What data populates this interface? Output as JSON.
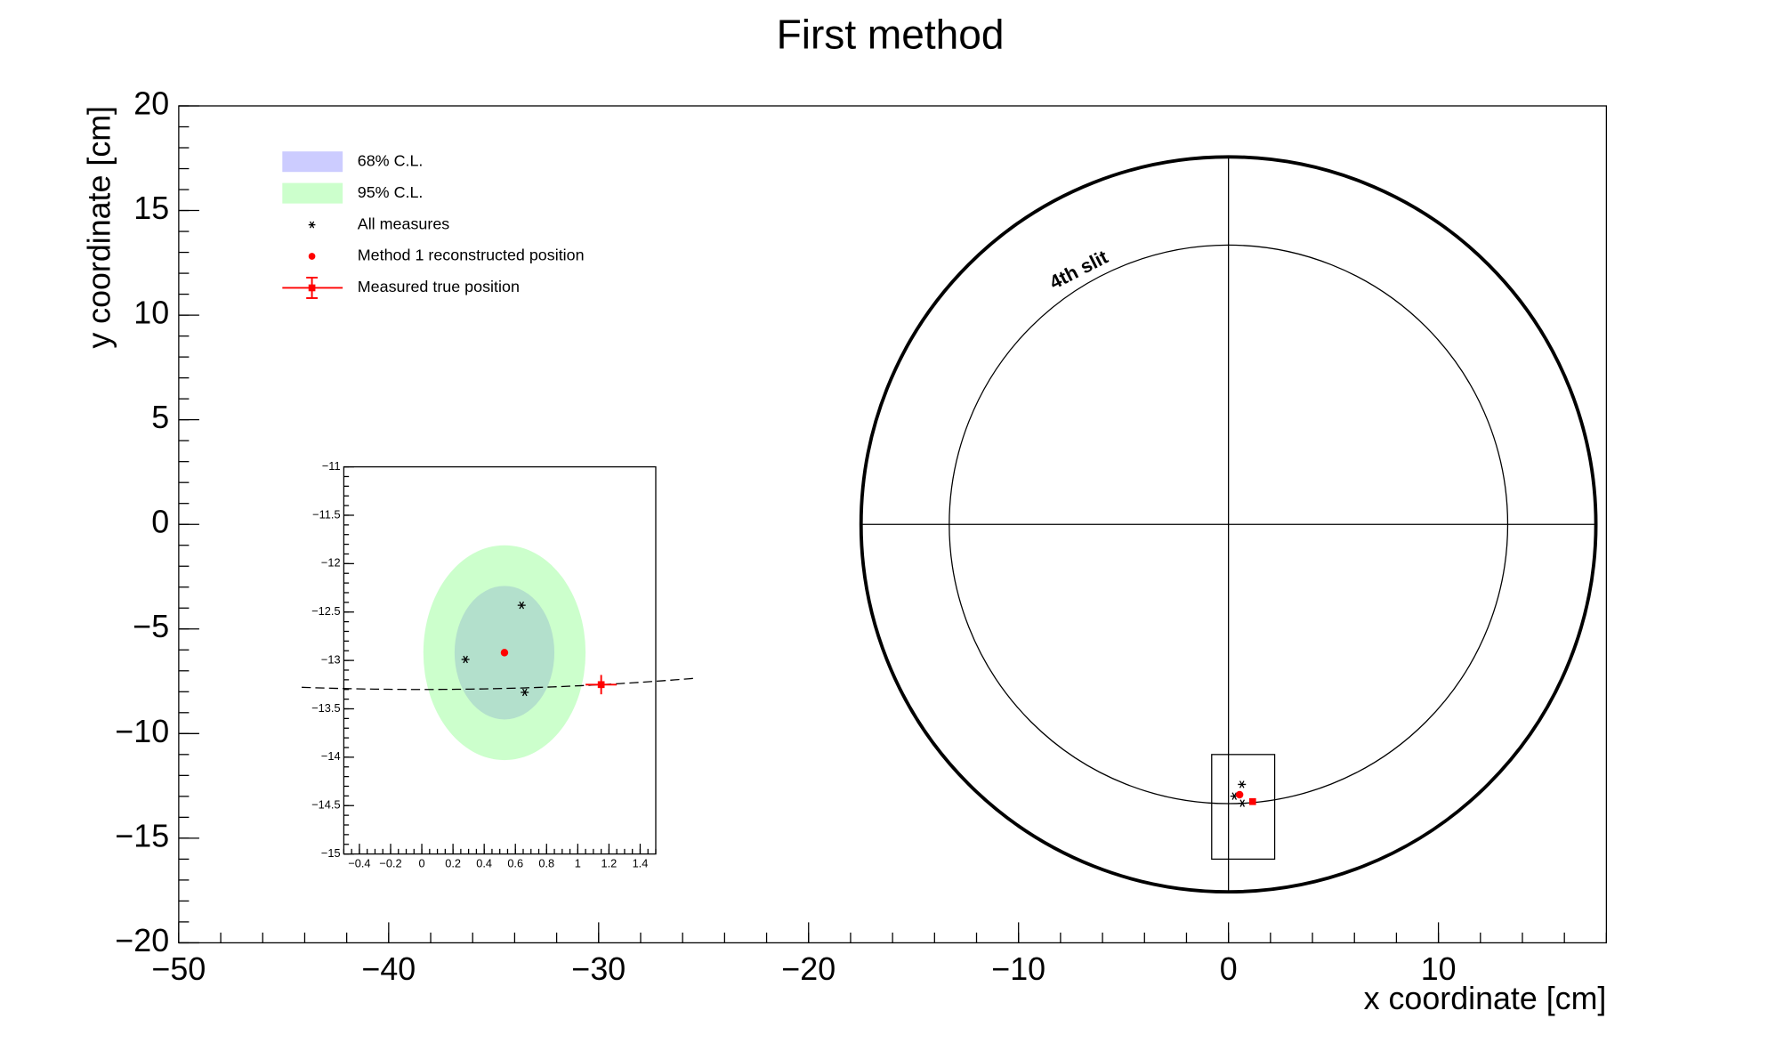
{
  "chart_data": {
    "type": "scatter",
    "title": "First method",
    "x_label": "x coordinate [cm]",
    "y_label": "y coordinate [cm]",
    "legend": "top-left",
    "xlim": [
      -50,
      18
    ],
    "ylim": [
      -20,
      20
    ],
    "xticks": [
      {
        "value": -50,
        "label": "−50"
      },
      {
        "value": -40,
        "label": "−40"
      },
      {
        "value": -30,
        "label": "−30"
      },
      {
        "value": -20,
        "label": "−20"
      },
      {
        "value": -10,
        "label": "−10"
      },
      0,
      10
    ],
    "yticks": [
      {
        "value": -20,
        "label": "−20"
      },
      {
        "value": -15,
        "label": "−15"
      },
      {
        "value": -10,
        "label": "−10"
      },
      {
        "value": -5,
        "label": "−5"
      },
      0,
      5,
      10,
      15,
      20
    ],
    "circles": [
      {
        "x": 0,
        "y": 0,
        "r": 17.5
      },
      {
        "x": 0,
        "y": 0,
        "r": 13.3
      }
    ],
    "annotation": "4th slit",
    "zoom_box": {
      "xlim": [
        -0.8,
        2.2
      ],
      "ylim": [
        -16,
        -11
      ]
    },
    "regions": [
      {
        "name": "68% C.L.",
        "color": "#ccccff",
        "x": 0.53,
        "y": -12.92,
        "rx": 0.32,
        "ry": 0.69
      },
      {
        "name": "95% C.L.",
        "color": "#ccffcc",
        "x": 0.53,
        "y": -12.92,
        "rx": 0.52,
        "ry": 1.11
      }
    ],
    "series": [
      {
        "name": "All measures",
        "color": "#000000",
        "x": [
          0.64,
          0.28,
          0.66
        ],
        "y": [
          -12.43,
          -12.99,
          -13.33
        ]
      },
      {
        "name": "Method 1 reconstructed position",
        "color": "#ff0000",
        "x": [
          0.53
        ],
        "y": [
          -12.92
        ]
      },
      {
        "name": "Measured true position",
        "color": "#ff0000",
        "x": [
          1.15
        ],
        "y": [
          -13.25
        ],
        "xerr": [
          0.1
        ],
        "yerr": [
          0.1
        ]
      }
    ],
    "inset": {
      "xlim": [
        -0.5,
        1.5
      ],
      "ylim": [
        -15,
        -11
      ],
      "xticks": [
        {
          "value": -0.4,
          "label": "−0.4"
        },
        {
          "value": -0.2,
          "label": "−0.2"
        },
        0,
        0.2,
        0.4,
        0.6,
        0.8,
        1,
        1.2,
        1.4
      ],
      "yticks": [
        {
          "value": -15,
          "label": "−15"
        },
        {
          "value": -14.5,
          "label": "−14.5"
        },
        {
          "value": -14,
          "label": "−14"
        },
        {
          "value": -13.5,
          "label": "−13.5"
        },
        {
          "value": -13,
          "label": "−13"
        },
        {
          "value": -12.5,
          "label": "−12.5"
        },
        {
          "value": -12,
          "label": "−12"
        },
        {
          "value": -11.5,
          "label": "−11.5"
        },
        {
          "value": -11,
          "label": "−11"
        }
      ]
    }
  }
}
